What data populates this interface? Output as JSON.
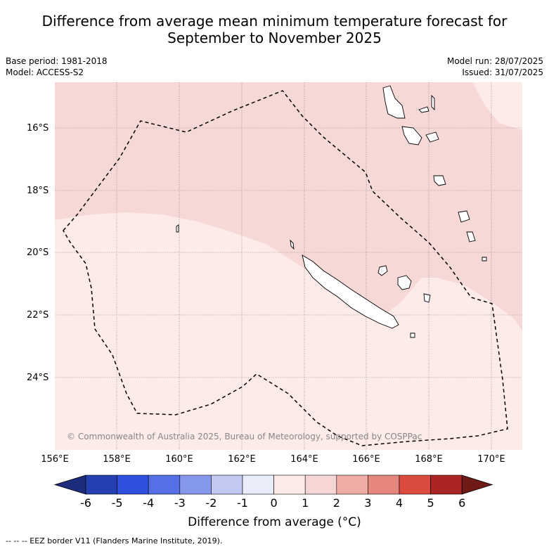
{
  "title_line1": "Difference from average mean minimum temperature forecast for",
  "title_line2": "September to November 2025",
  "base_period": "Base period: 1981-2018",
  "model": "Model: ACCESS-S2",
  "model_run": "Model run: 28/07/2025",
  "issued": "Issued: 31/07/2025",
  "copyright": "© Commonwealth of Australia 2025, Bureau of Meteorology, supported by COSPPac",
  "lat_labels": [
    "16°S",
    "18°S",
    "20°S",
    "22°S",
    "24°S"
  ],
  "lon_labels": [
    "156°E",
    "158°E",
    "160°E",
    "162°E",
    "164°E",
    "166°E",
    "168°E",
    "170°E"
  ],
  "colorbar": {
    "ticks": [
      "-6",
      "-5",
      "-4",
      "-3",
      "-2",
      "-1",
      "0",
      "1",
      "2",
      "3",
      "4",
      "5",
      "6"
    ],
    "colors": [
      "#1d2c7c",
      "#2440b0",
      "#2f4fdf",
      "#5670e6",
      "#8597ea",
      "#c1c9f2",
      "#e9ecf9",
      "#fcebe8",
      "#f6d6d5",
      "#efaca7",
      "#e5867d",
      "#db4a3f",
      "#ab2623",
      "#6e1b17"
    ],
    "label": "Difference from average (°C)"
  },
  "map_colors": {
    "band_0_1": "#fcebe8",
    "band_1_2": "#f6d8d6"
  },
  "footnote": "--  --  -- EEZ border V11 (Flanders Marine Institute, 2019)."
}
